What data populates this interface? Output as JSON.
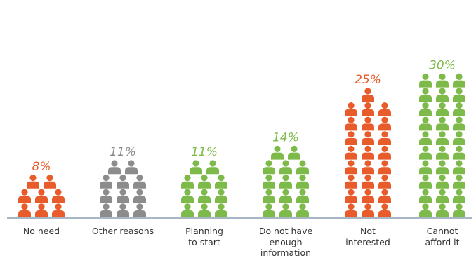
{
  "chart_data": {
    "type": "bar",
    "categories": [
      "No need",
      "Other reasons",
      "Planning to start",
      "Do not have enough information",
      "Not interested",
      "Cannot afford it"
    ],
    "category_lines": [
      [
        "No need"
      ],
      [
        "Other reasons"
      ],
      [
        "Planning",
        "to start"
      ],
      [
        "Do not have",
        "enough",
        "information"
      ],
      [
        "Not",
        "interested"
      ],
      [
        "Cannot",
        "afford it"
      ]
    ],
    "values": [
      8,
      11,
      11,
      14,
      25,
      30
    ],
    "value_labels": [
      "8%",
      "11%",
      "11%",
      "14%",
      "25%",
      "30%"
    ],
    "colors": [
      "#E85C2B",
      "#8C8C8C",
      "#7DBA4A",
      "#7DBA4A",
      "#E85C2B",
      "#7DBA4A"
    ],
    "icon": "person-icon",
    "axis_color": "#8A9FB4"
  }
}
